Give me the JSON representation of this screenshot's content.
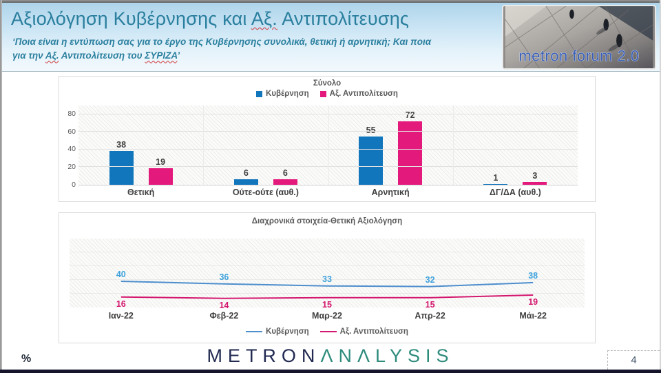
{
  "header": {
    "title_pre": "Αξιολόγηση Κυβέρνησης και ",
    "title_ax": "Αξ.",
    "title_post": " Αντιπολίτευσης",
    "subtitle_line1": "‘Ποια είναι η εντύπωση σας για το έργο της Κυβέρνησης συνολικά, θετική ή αρνητική; Και ποια",
    "sub2_pre": "για την ",
    "sub2_ax": "Αξ.",
    "sub2_mid": " Αντιπολίτευση του ",
    "sub2_syriza": "ΣΥΡΙΖΑ",
    "sub2_end": "’",
    "forum_logo_text": "metron forum 2.0"
  },
  "footer": {
    "percent_label": "%",
    "logo_metron": "METRON",
    "logo_analysis": "ΛNΛLYSIS",
    "page_number": "4"
  },
  "colors": {
    "government_blue": "#1276BC",
    "opposition_pink": "#E4197C",
    "line_blue": "#4D8ECC",
    "line_blue_label": "#3FA2DC",
    "line_pink": "#D4176E",
    "title_teal": "#2A7F9E"
  },
  "chart_data": [
    {
      "type": "bar",
      "title": "Σύνολο",
      "legend_position": "top",
      "categories": [
        "Θετική",
        "Ούτε-ούτε (αυθ.)",
        "Αρνητική",
        "ΔΓ/ΔΑ (αυθ.)"
      ],
      "series": [
        {
          "name": "Κυβέρνηση",
          "color": "#1276BC",
          "values": [
            38,
            6,
            55,
            1
          ]
        },
        {
          "name": "Αξ. Αντιπολίτευση",
          "color": "#E4197C",
          "values": [
            19,
            6,
            72,
            3
          ]
        }
      ],
      "ylim": [
        0,
        90
      ],
      "yticks": [
        0,
        20,
        40,
        60,
        80
      ],
      "grid": true
    },
    {
      "type": "line",
      "title": "Διαχρονικά στοιχεία-Θετική Αξιολόγηση",
      "legend_position": "bottom",
      "categories": [
        "Ιαν-22",
        "Φεβ-22",
        "Μαρ-22",
        "Απρ-22",
        "Μάι-22"
      ],
      "series": [
        {
          "name": "Κυβέρνηση",
          "color": "#4D8ECC",
          "label_color": "#3FA2DC",
          "label_side": "above",
          "values": [
            40,
            36,
            33,
            32,
            38
          ]
        },
        {
          "name": "Αξ. Αντιπολίτευση",
          "color": "#D4176E",
          "label_color": "#D4176E",
          "label_side": "below",
          "values": [
            16,
            14,
            15,
            15,
            19
          ]
        }
      ],
      "ylim": [
        0,
        105
      ],
      "grid": true
    }
  ]
}
